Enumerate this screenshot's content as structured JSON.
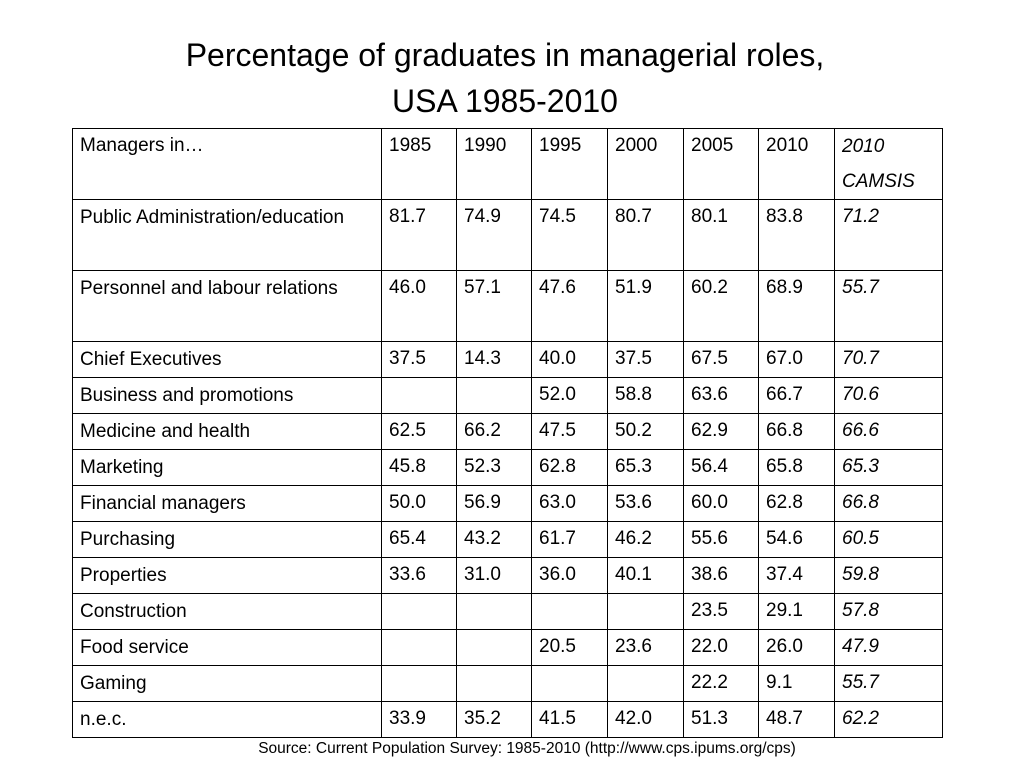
{
  "title": {
    "line1": "Percentage of graduates in managerial roles,",
    "line2": "USA 1985-2010"
  },
  "table": {
    "header": {
      "label": "Managers in…",
      "years": [
        "1985",
        "1990",
        "1995",
        "2000",
        "2005",
        "2010"
      ],
      "camsis": "2010 CAMSIS"
    },
    "rows": [
      {
        "label": "Public Administration/education",
        "values": [
          "81.7",
          "74.9",
          "74.5",
          "80.7",
          "80.1",
          "83.8"
        ],
        "camsis": "71.2"
      },
      {
        "label": "Personnel and labour relations",
        "values": [
          "46.0",
          "57.1",
          "47.6",
          "51.9",
          "60.2",
          "68.9"
        ],
        "camsis": "55.7"
      },
      {
        "label": "Chief Executives",
        "values": [
          "37.5",
          "14.3",
          "40.0",
          "37.5",
          "67.5",
          "67.0"
        ],
        "camsis": "70.7"
      },
      {
        "label": "Business and promotions",
        "values": [
          "",
          "",
          "52.0",
          "58.8",
          "63.6",
          "66.7"
        ],
        "camsis": "70.6"
      },
      {
        "label": "Medicine and health",
        "values": [
          "62.5",
          "66.2",
          "47.5",
          "50.2",
          "62.9",
          "66.8"
        ],
        "camsis": "66.6"
      },
      {
        "label": "Marketing",
        "values": [
          "45.8",
          "52.3",
          "62.8",
          "65.3",
          "56.4",
          "65.8"
        ],
        "camsis": "65.3"
      },
      {
        "label": "Financial managers",
        "values": [
          "50.0",
          "56.9",
          "63.0",
          "53.6",
          "60.0",
          "62.8"
        ],
        "camsis": "66.8"
      },
      {
        "label": "Purchasing",
        "values": [
          "65.4",
          "43.2",
          "61.7",
          "46.2",
          "55.6",
          "54.6"
        ],
        "camsis": "60.5"
      },
      {
        "label": "Properties",
        "values": [
          "33.6",
          "31.0",
          "36.0",
          "40.1",
          "38.6",
          "37.4"
        ],
        "camsis": "59.8"
      },
      {
        "label": "Construction",
        "values": [
          "",
          "",
          "",
          "",
          "23.5",
          "29.1"
        ],
        "camsis": "57.8"
      },
      {
        "label": "Food service",
        "values": [
          "",
          "",
          "20.5",
          "23.6",
          "22.0",
          "26.0"
        ],
        "camsis": "47.9"
      },
      {
        "label": "Gaming",
        "values": [
          "",
          "",
          "",
          "",
          "22.2",
          "9.1"
        ],
        "camsis": "55.7"
      },
      {
        "label": "n.e.c.",
        "values": [
          "33.9",
          "35.2",
          "41.5",
          "42.0",
          "51.3",
          "48.7"
        ],
        "camsis": "62.2"
      }
    ]
  },
  "source": "Source: Current Population Survey: 1985-2010 (http://www.cps.ipums.org/cps)"
}
